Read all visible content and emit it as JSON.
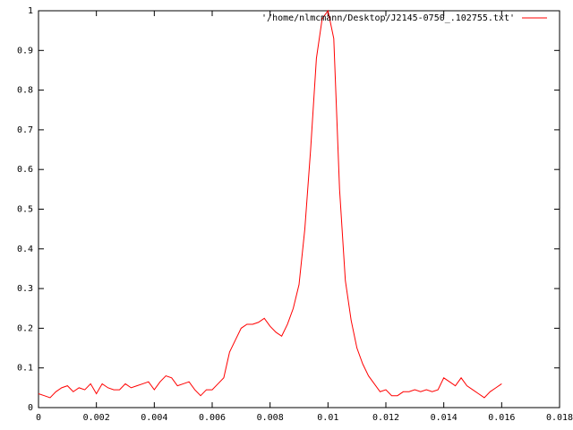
{
  "chart_data": {
    "type": "line",
    "x": [
      0,
      0.0002,
      0.0004,
      0.0006,
      0.0008,
      0.001,
      0.0012,
      0.0014,
      0.0016,
      0.0018,
      0.002,
      0.0022,
      0.0024,
      0.0026,
      0.0028,
      0.003,
      0.0032,
      0.0034,
      0.0036,
      0.0038,
      0.004,
      0.0042,
      0.0044,
      0.0046,
      0.0048,
      0.005,
      0.0052,
      0.0054,
      0.0056,
      0.0058,
      0.006,
      0.0062,
      0.0064,
      0.0066,
      0.0068,
      0.007,
      0.0072,
      0.0074,
      0.0076,
      0.0078,
      0.008,
      0.0082,
      0.0084,
      0.0086,
      0.0088,
      0.009,
      0.0092,
      0.0094,
      0.0096,
      0.0098,
      0.01,
      0.0102,
      0.0104,
      0.0106,
      0.0108,
      0.011,
      0.0112,
      0.0114,
      0.0116,
      0.0118,
      0.012,
      0.0122,
      0.0124,
      0.0126,
      0.0128,
      0.013,
      0.0132,
      0.0134,
      0.0136,
      0.0138,
      0.014,
      0.0142,
      0.0144,
      0.0146,
      0.0148,
      0.015,
      0.0152,
      0.0154,
      0.0156,
      0.0158,
      0.016
    ],
    "series": [
      {
        "name": "'/home/nlmcmann/Desktop/J2145-0750_.102755.txt'",
        "color": "#ff0000",
        "values": [
          0.035,
          0.03,
          0.025,
          0.04,
          0.05,
          0.055,
          0.04,
          0.05,
          0.045,
          0.06,
          0.035,
          0.06,
          0.05,
          0.045,
          0.045,
          0.06,
          0.05,
          0.055,
          0.06,
          0.065,
          0.045,
          0.065,
          0.08,
          0.075,
          0.055,
          0.06,
          0.065,
          0.045,
          0.03,
          0.045,
          0.045,
          0.06,
          0.075,
          0.14,
          0.17,
          0.2,
          0.21,
          0.21,
          0.215,
          0.225,
          0.205,
          0.19,
          0.18,
          0.21,
          0.25,
          0.31,
          0.45,
          0.65,
          0.88,
          0.98,
          1.0,
          0.93,
          0.55,
          0.32,
          0.22,
          0.15,
          0.11,
          0.08,
          0.06,
          0.04,
          0.045,
          0.03,
          0.03,
          0.04,
          0.04,
          0.045,
          0.04,
          0.045,
          0.04,
          0.045,
          0.075,
          0.065,
          0.055,
          0.075,
          0.055,
          0.045,
          0.035,
          0.025,
          0.04,
          0.05,
          0.06
        ]
      }
    ],
    "xlim": [
      0,
      0.018
    ],
    "xticks": [
      0,
      0.002,
      0.004,
      0.006,
      0.008,
      0.01,
      0.012,
      0.014,
      0.016,
      0.018
    ],
    "ylim": [
      0,
      1
    ],
    "yticks": [
      0,
      0.1,
      0.2,
      0.3,
      0.4,
      0.5,
      0.6,
      0.7,
      0.8,
      0.9,
      1
    ],
    "legend": "top-right"
  }
}
